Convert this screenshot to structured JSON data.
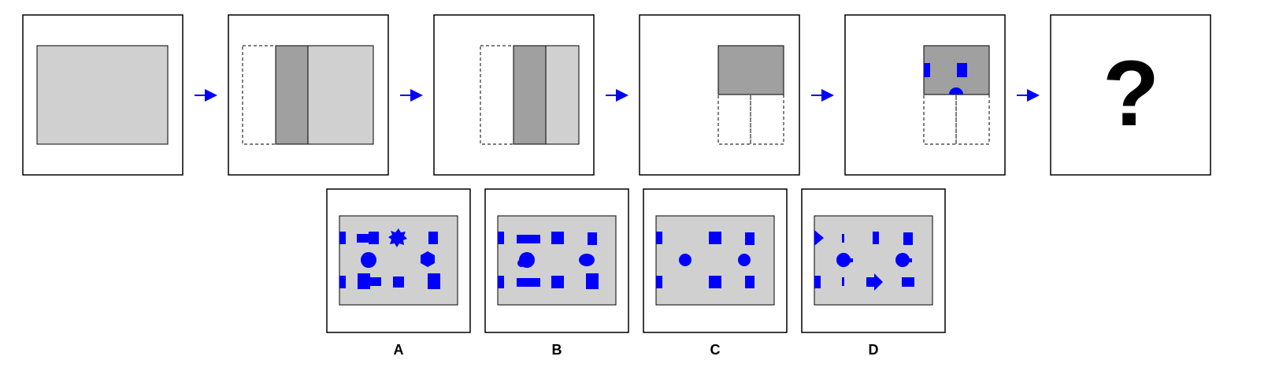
{
  "colors": {
    "sheet": "#d0d0d0",
    "folded": "#a0a0a0",
    "holes": "#0000ff",
    "arrow": "#0000ff",
    "frame": "#000000"
  },
  "question_mark": "?",
  "options": [
    {
      "label": "A"
    },
    {
      "label": "B"
    },
    {
      "label": "C"
    },
    {
      "label": "D"
    }
  ]
}
